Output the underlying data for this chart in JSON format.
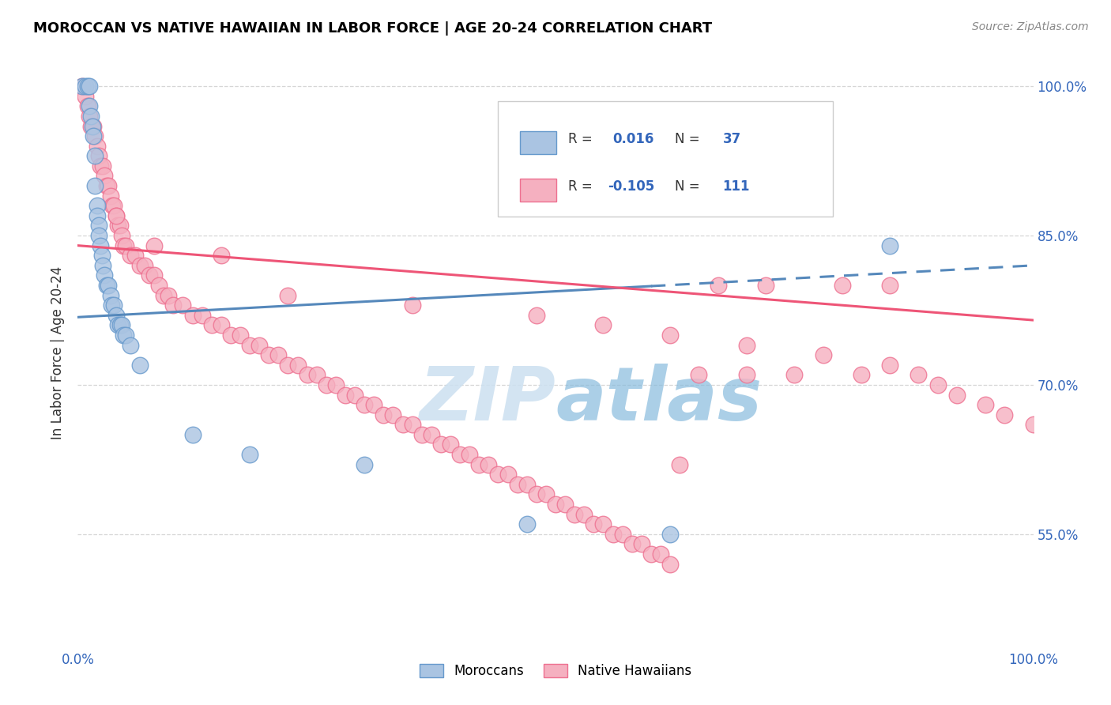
{
  "title": "MOROCCAN VS NATIVE HAWAIIAN IN LABOR FORCE | AGE 20-24 CORRELATION CHART",
  "source": "Source: ZipAtlas.com",
  "ylabel": "In Labor Force | Age 20-24",
  "right_ytick_labels": [
    "55.0%",
    "70.0%",
    "85.0%",
    "100.0%"
  ],
  "right_ytick_vals": [
    0.55,
    0.7,
    0.85,
    1.0
  ],
  "legend_r_moroccan": "0.016",
  "legend_n_moroccan": "37",
  "legend_r_hawaiian": "-0.105",
  "legend_n_hawaiian": "111",
  "moroccan_color": "#aac4e2",
  "hawaiian_color": "#f5b0c0",
  "moroccan_edge": "#6699cc",
  "hawaiian_edge": "#ee7090",
  "trend_moroccan_color": "#5588bb",
  "trend_hawaiian_color": "#ee5577",
  "watermark_text": "ZIPAtlas",
  "watermark_color": "#cce4f5",
  "moroccan_x": [
    0.005,
    0.008,
    0.01,
    0.012,
    0.012,
    0.014,
    0.015,
    0.016,
    0.018,
    0.018,
    0.02,
    0.02,
    0.022,
    0.022,
    0.024,
    0.025,
    0.026,
    0.028,
    0.03,
    0.032,
    0.034,
    0.035,
    0.038,
    0.04,
    0.042,
    0.044,
    0.046,
    0.048,
    0.05,
    0.055,
    0.065,
    0.12,
    0.18,
    0.3,
    0.47,
    0.62,
    0.85
  ],
  "moroccan_y": [
    1.0,
    1.0,
    1.0,
    1.0,
    0.98,
    0.97,
    0.96,
    0.95,
    0.93,
    0.9,
    0.88,
    0.87,
    0.86,
    0.85,
    0.84,
    0.83,
    0.82,
    0.81,
    0.8,
    0.8,
    0.79,
    0.78,
    0.78,
    0.77,
    0.76,
    0.76,
    0.76,
    0.75,
    0.75,
    0.74,
    0.72,
    0.65,
    0.63,
    0.62,
    0.56,
    0.55,
    0.84
  ],
  "hawaiian_x": [
    0.005,
    0.008,
    0.01,
    0.012,
    0.014,
    0.016,
    0.018,
    0.02,
    0.022,
    0.024,
    0.026,
    0.028,
    0.03,
    0.032,
    0.034,
    0.036,
    0.038,
    0.04,
    0.042,
    0.044,
    0.046,
    0.048,
    0.05,
    0.055,
    0.06,
    0.065,
    0.07,
    0.075,
    0.08,
    0.085,
    0.09,
    0.095,
    0.1,
    0.11,
    0.12,
    0.13,
    0.14,
    0.15,
    0.16,
    0.17,
    0.18,
    0.19,
    0.2,
    0.21,
    0.22,
    0.23,
    0.24,
    0.25,
    0.26,
    0.27,
    0.28,
    0.29,
    0.3,
    0.31,
    0.32,
    0.33,
    0.34,
    0.35,
    0.36,
    0.37,
    0.38,
    0.39,
    0.4,
    0.41,
    0.42,
    0.43,
    0.44,
    0.45,
    0.46,
    0.47,
    0.48,
    0.49,
    0.5,
    0.51,
    0.52,
    0.53,
    0.54,
    0.55,
    0.56,
    0.57,
    0.58,
    0.59,
    0.6,
    0.61,
    0.62,
    0.63,
    0.65,
    0.67,
    0.7,
    0.72,
    0.75,
    0.8,
    0.82,
    0.85,
    0.88,
    0.9,
    0.92,
    0.95,
    0.97,
    1.0,
    0.04,
    0.08,
    0.15,
    0.22,
    0.35,
    0.48,
    0.55,
    0.62,
    0.7,
    0.78,
    0.85
  ],
  "hawaiian_y": [
    1.0,
    0.99,
    0.98,
    0.97,
    0.96,
    0.96,
    0.95,
    0.94,
    0.93,
    0.92,
    0.92,
    0.91,
    0.9,
    0.9,
    0.89,
    0.88,
    0.88,
    0.87,
    0.86,
    0.86,
    0.85,
    0.84,
    0.84,
    0.83,
    0.83,
    0.82,
    0.82,
    0.81,
    0.81,
    0.8,
    0.79,
    0.79,
    0.78,
    0.78,
    0.77,
    0.77,
    0.76,
    0.76,
    0.75,
    0.75,
    0.74,
    0.74,
    0.73,
    0.73,
    0.72,
    0.72,
    0.71,
    0.71,
    0.7,
    0.7,
    0.69,
    0.69,
    0.68,
    0.68,
    0.67,
    0.67,
    0.66,
    0.66,
    0.65,
    0.65,
    0.64,
    0.64,
    0.63,
    0.63,
    0.62,
    0.62,
    0.61,
    0.61,
    0.6,
    0.6,
    0.59,
    0.59,
    0.58,
    0.58,
    0.57,
    0.57,
    0.56,
    0.56,
    0.55,
    0.55,
    0.54,
    0.54,
    0.53,
    0.53,
    0.52,
    0.62,
    0.71,
    0.8,
    0.71,
    0.8,
    0.71,
    0.8,
    0.71,
    0.8,
    0.71,
    0.7,
    0.69,
    0.68,
    0.67,
    0.66,
    0.87,
    0.84,
    0.83,
    0.79,
    0.78,
    0.77,
    0.76,
    0.75,
    0.74,
    0.73,
    0.72
  ],
  "trend_moroccan_x0": 0.0,
  "trend_moroccan_x1": 1.0,
  "trend_moroccan_y0": 0.768,
  "trend_moroccan_y1": 0.82,
  "trend_moroccan_solid_end": 0.6,
  "trend_hawaiian_x0": 0.0,
  "trend_hawaiian_x1": 1.0,
  "trend_hawaiian_y0": 0.84,
  "trend_hawaiian_y1": 0.765,
  "ylim_min": 0.435,
  "ylim_max": 1.03,
  "xlim_min": 0.0,
  "xlim_max": 1.0
}
